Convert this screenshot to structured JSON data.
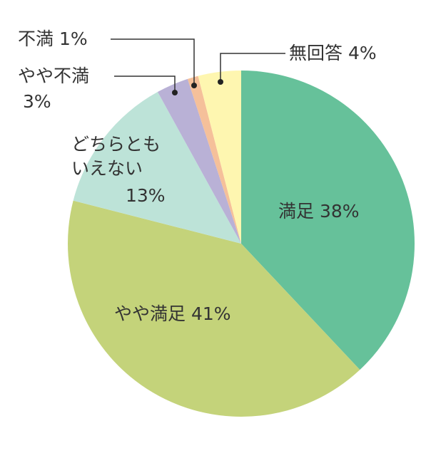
{
  "chart_data": {
    "type": "pie",
    "categories": [
      "満足",
      "やや満足",
      "どちらともいえない",
      "やや不満",
      "不満",
      "無回答"
    ],
    "values": [
      38,
      41,
      13,
      3,
      1,
      4
    ],
    "value_labels": [
      "38%",
      "41%",
      "13%",
      "3%",
      "1%",
      "4%"
    ],
    "colors": [
      "#66c19a",
      "#c4d37a",
      "#bde3d8",
      "#b9b1d6",
      "#f5c09a",
      "#fef6b0"
    ]
  }
}
